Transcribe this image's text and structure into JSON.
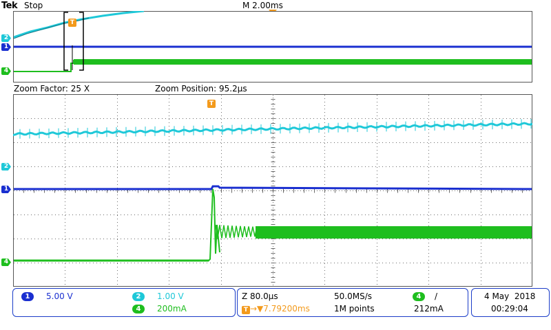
{
  "header": {
    "brand": "Tek",
    "run_state": "Stop",
    "timebase": "M 2.00ms"
  },
  "zoom": {
    "factor_text": "Zoom Factor: 25 X",
    "position_text": "Zoom Position: 95.2µs"
  },
  "markers": {
    "trigger_glyph": "T",
    "ch1": "1",
    "ch2": "2",
    "ch4": "4"
  },
  "channels": {
    "ch1": {
      "label": "1",
      "scale": "5.00 V",
      "color": "#1a2fd0"
    },
    "ch2": {
      "label": "2",
      "scale": "1.00 V",
      "color": "#1ec8d8"
    },
    "ch4": {
      "label": "4",
      "scale": "200mA",
      "color": "#1ebe1e"
    }
  },
  "zoom_settings": {
    "z_scale": "Z 80.0µs",
    "trigger_position": "7.79200ms",
    "sample_rate": "50.0MS/s",
    "record_length": "1M points"
  },
  "trigger": {
    "source_label": "4",
    "slope_symbol": "/",
    "level": "212mA"
  },
  "datetime": {
    "date": "4 May  2018",
    "time": "00:29:04"
  },
  "colors": {
    "grid": "#6a6a6a",
    "trigger_orange": "#f39a1c",
    "panel_border": "#1a3cc8"
  }
}
